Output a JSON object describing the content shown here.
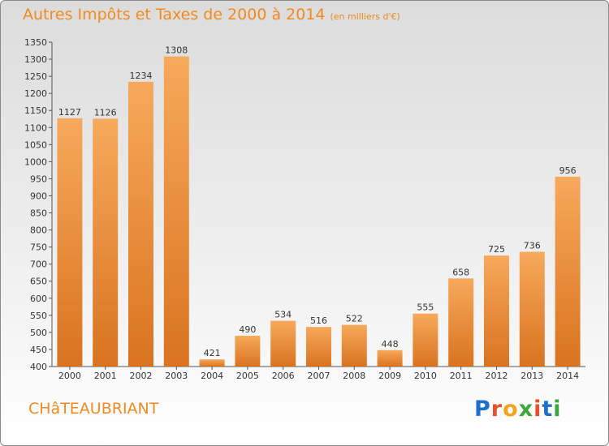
{
  "title": "Autres Impôts et Taxes de 2000 à 2014",
  "unit": "(en milliers d'€)",
  "city": "CHâTEAUBRIANT",
  "logo": {
    "text": "Proxiti",
    "colors": [
      "#1f6fc9",
      "#e8502a",
      "#f2a51c",
      "#39a83a",
      "#e8502a",
      "#1f6fc9",
      "#39a83a"
    ]
  },
  "colors": {
    "bar_top": "#f7a95c",
    "bar_bottom": "#d9731f",
    "accent": "#f28a1e"
  },
  "chart_data": {
    "type": "bar",
    "categories": [
      "2000",
      "2001",
      "2002",
      "2003",
      "2004",
      "2005",
      "2006",
      "2007",
      "2008",
      "2009",
      "2010",
      "2011",
      "2012",
      "2013",
      "2014"
    ],
    "values": [
      1127,
      1126,
      1234,
      1308,
      421,
      490,
      534,
      516,
      522,
      448,
      555,
      658,
      725,
      736,
      956
    ],
    "ylim": [
      400,
      1350
    ],
    "ytick_step": 50,
    "grid": false,
    "legend": "none"
  }
}
